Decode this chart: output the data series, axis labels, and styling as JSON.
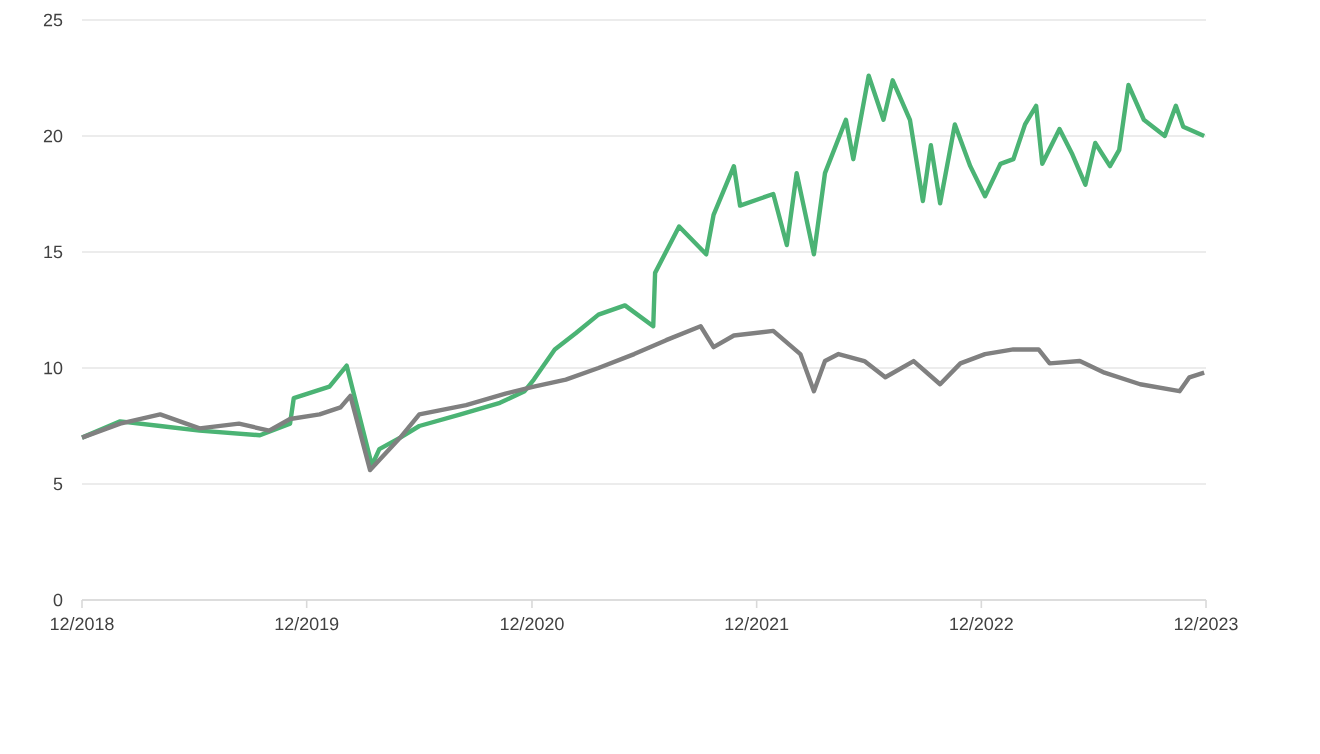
{
  "chart_data": {
    "type": "line",
    "xlim": [
      "2018-12-01",
      "2023-12-01"
    ],
    "xticks": [
      {
        "value": "2018-12-01",
        "label": "12/2018"
      },
      {
        "value": "2019-12-01",
        "label": "12/2019"
      },
      {
        "value": "2020-12-01",
        "label": "12/2020"
      },
      {
        "value": "2021-12-01",
        "label": "12/2021"
      },
      {
        "value": "2022-12-01",
        "label": "12/2022"
      },
      {
        "value": "2023-12-01",
        "label": "12/2023"
      }
    ],
    "ylim": [
      0,
      25
    ],
    "yticks": [
      0,
      5,
      10,
      15,
      20,
      25
    ],
    "grid": "y",
    "series": [
      {
        "color": "#4bb374",
        "x": [
          "2018-12-01",
          "2019-02-01",
          "2019-04-07",
          "2019-06-10",
          "2019-09-16",
          "2019-11-04",
          "2019-11-10",
          "2020-01-07",
          "2020-02-04",
          "2020-03-16",
          "2020-03-28",
          "2020-05-01",
          "2020-06-01",
          "2020-08-07",
          "2020-10-10",
          "2020-11-19",
          "2020-12-04",
          "2021-01-07",
          "2021-02-10",
          "2021-03-19",
          "2021-05-01",
          "2021-06-16",
          "2021-06-19",
          "2021-07-28",
          "2021-09-10",
          "2021-09-22",
          "2021-10-25",
          "2021-11-04",
          "2021-12-28",
          "2022-01-19",
          "2022-02-04",
          "2022-03-04",
          "2022-03-22",
          "2022-04-25",
          "2022-05-07",
          "2022-06-01",
          "2022-06-25",
          "2022-07-10",
          "2022-08-07",
          "2022-08-28",
          "2022-09-10",
          "2022-09-25",
          "2022-10-19",
          "2022-11-13",
          "2022-12-07",
          "2023-01-01",
          "2023-01-22",
          "2023-02-10",
          "2023-02-28",
          "2023-03-10",
          "2023-04-07",
          "2023-04-28",
          "2023-05-19",
          "2023-06-04",
          "2023-06-28",
          "2023-07-13",
          "2023-07-28",
          "2023-08-22",
          "2023-09-25",
          "2023-10-13",
          "2023-10-25",
          "2023-11-28"
        ],
        "values": [
          7.0,
          7.7,
          7.5,
          7.3,
          7.1,
          7.6,
          8.7,
          9.2,
          10.1,
          5.8,
          6.5,
          7.0,
          7.5,
          8.0,
          8.5,
          9.0,
          9.5,
          10.8,
          11.5,
          12.3,
          12.7,
          11.8,
          14.1,
          16.1,
          14.9,
          16.6,
          18.7,
          17.0,
          17.5,
          15.3,
          18.4,
          14.9,
          18.4,
          20.7,
          19.0,
          22.6,
          20.7,
          22.4,
          20.7,
          17.2,
          19.6,
          17.1,
          20.5,
          18.7,
          17.4,
          18.8,
          19.0,
          20.5,
          21.3,
          18.8,
          20.3,
          19.2,
          17.9,
          19.7,
          18.7,
          19.4,
          22.2,
          20.7,
          20.0,
          21.3,
          20.4,
          20.0
        ]
      },
      {
        "color": "#808080",
        "x": [
          "2018-12-01",
          "2019-02-01",
          "2019-04-07",
          "2019-06-10",
          "2019-08-13",
          "2019-10-01",
          "2019-11-04",
          "2019-12-22",
          "2020-01-25",
          "2020-02-10",
          "2020-03-13",
          "2020-05-01",
          "2020-06-01",
          "2020-08-16",
          "2020-10-19",
          "2020-12-04",
          "2021-01-25",
          "2021-03-19",
          "2021-05-16",
          "2021-07-07",
          "2021-09-01",
          "2021-09-22",
          "2021-10-25",
          "2021-12-28",
          "2022-02-10",
          "2022-03-04",
          "2022-03-22",
          "2022-04-13",
          "2022-05-25",
          "2022-06-28",
          "2022-08-13",
          "2022-09-25",
          "2022-10-28",
          "2022-12-07",
          "2023-01-22",
          "2023-03-04",
          "2023-03-22",
          "2023-05-10",
          "2023-06-19",
          "2023-08-16",
          "2023-10-19",
          "2023-11-04",
          "2023-11-28"
        ],
        "values": [
          7.0,
          7.6,
          8.0,
          7.4,
          7.6,
          7.3,
          7.8,
          8.0,
          8.3,
          8.8,
          5.6,
          7.0,
          8.0,
          8.4,
          8.9,
          9.2,
          9.5,
          10.0,
          10.6,
          11.2,
          11.8,
          10.9,
          11.4,
          11.6,
          10.6,
          9.0,
          10.3,
          10.6,
          10.3,
          9.6,
          10.3,
          9.3,
          10.2,
          10.6,
          10.8,
          10.8,
          10.2,
          10.3,
          9.8,
          9.3,
          9.0,
          9.6,
          9.8
        ]
      }
    ]
  }
}
